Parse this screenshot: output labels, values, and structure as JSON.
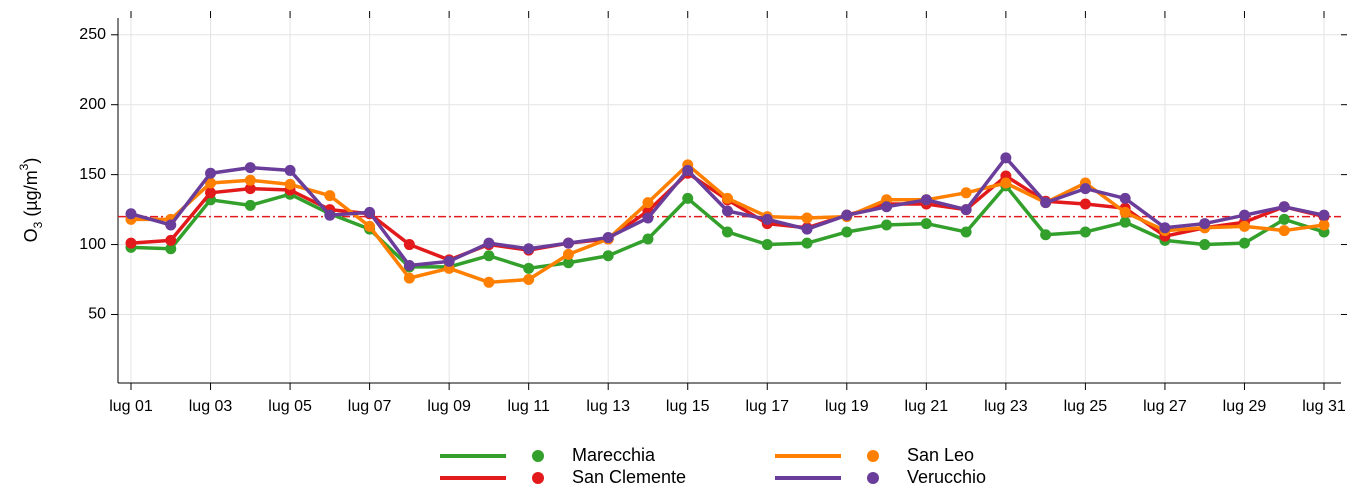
{
  "chart_data": {
    "type": "line",
    "y_label": [
      "O",
      "3",
      " (µg/m",
      "3",
      ")"
    ],
    "categories": [
      "lug 01",
      null,
      "lug 03",
      null,
      "lug 05",
      null,
      "lug 07",
      null,
      "lug 09",
      null,
      "lug 11",
      null,
      "lug 13",
      null,
      "lug 15",
      null,
      "lug 17",
      null,
      "lug 19",
      null,
      "lug 21",
      null,
      "lug 23",
      null,
      "lug 25",
      null,
      "lug 27",
      null,
      "lug 29",
      null,
      "lug 31"
    ],
    "series": [
      {
        "name": "Marecchia",
        "color": "#33a02c",
        "values": [
          98,
          97,
          132,
          128,
          136,
          122,
          111,
          84,
          84,
          92,
          83,
          87,
          92,
          104,
          133,
          109,
          100,
          101,
          109,
          114,
          115,
          109,
          142,
          107,
          109,
          116,
          103,
          100,
          101,
          118,
          109
        ]
      },
      {
        "name": "San Clemente",
        "color": "#e31a1c",
        "values": [
          101,
          103,
          137,
          140,
          139,
          125,
          122,
          100,
          89,
          100,
          96,
          101,
          104,
          124,
          151,
          132,
          115,
          112,
          121,
          129,
          129,
          125,
          149,
          131,
          129,
          126,
          106,
          112,
          116,
          127,
          120
        ]
      },
      {
        "name": "San Leo",
        "color": "#ff7f00",
        "values": [
          118,
          118,
          144,
          146,
          143,
          135,
          113,
          76,
          83,
          73,
          75,
          93,
          104,
          130,
          157,
          133,
          120,
          119,
          120,
          132,
          132,
          137,
          144,
          130,
          144,
          123,
          110,
          112,
          113,
          110,
          114
        ]
      },
      {
        "name": "Verucchio",
        "color": "#6a3d9a",
        "values": [
          122,
          114,
          151,
          155,
          153,
          121,
          123,
          85,
          88,
          101,
          97,
          101,
          105,
          119,
          153,
          124,
          118,
          111,
          121,
          127,
          132,
          125,
          162,
          130,
          140,
          133,
          112,
          115,
          121,
          127,
          121
        ]
      }
    ],
    "reference_line": {
      "value": 120,
      "color": "#e31a1c"
    },
    "ylim": [
      1,
      262
    ],
    "yticks": [
      50,
      100,
      150,
      200,
      250
    ],
    "grid": true
  }
}
